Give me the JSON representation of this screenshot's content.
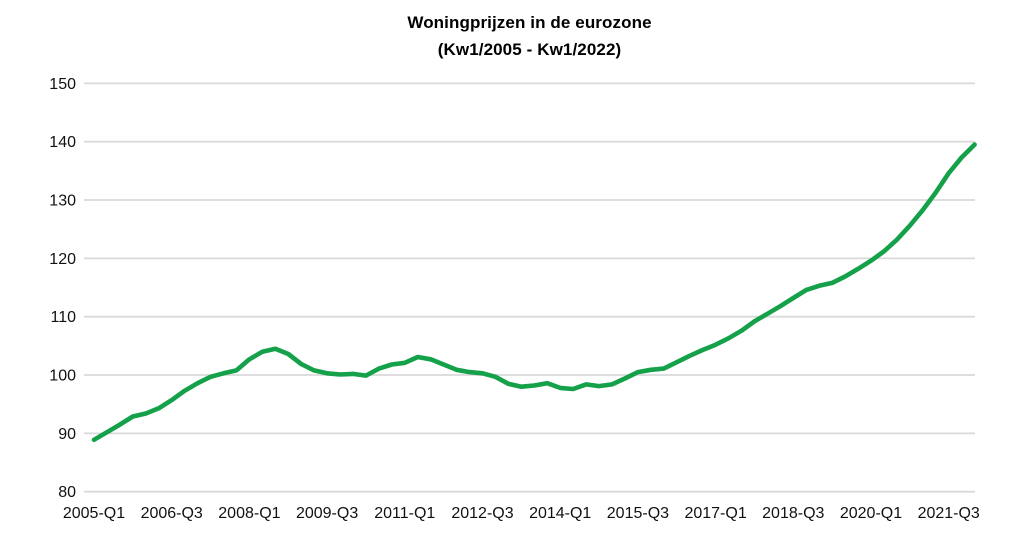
{
  "title": "Woningprijzen in de eurozone",
  "subtitle": "(Kw1/2005 - Kw1/2022)",
  "colors": {
    "line": "#14a14a",
    "gridline": "#d9d9d9",
    "text": "#111111",
    "background": "#ffffff"
  },
  "chart_data": {
    "type": "line",
    "title": "Woningprijzen in de eurozone",
    "subtitle": "(Kw1/2005 - Kw1/2022)",
    "x_start": "2005-Q1",
    "x_end": "2022-Q1",
    "x_frequency": "quarterly",
    "x_tick_labels": [
      "2005-Q1",
      "2006-Q3",
      "2008-Q1",
      "2009-Q3",
      "2011-Q1",
      "2012-Q3",
      "2014-Q1",
      "2015-Q3",
      "2017-Q1",
      "2018-Q3",
      "2020-Q1",
      "2021-Q3"
    ],
    "x_tick_indices": [
      0,
      6,
      12,
      18,
      24,
      30,
      36,
      42,
      48,
      54,
      60,
      66
    ],
    "y_ticks": [
      80,
      90,
      100,
      110,
      120,
      130,
      140,
      150
    ],
    "ylim": [
      80,
      150
    ],
    "grid": "horizontal",
    "legend": "none",
    "values": [
      88.9,
      90.2,
      91.5,
      92.9,
      93.4,
      94.3,
      95.7,
      97.3,
      98.6,
      99.7,
      100.3,
      100.8,
      102.7,
      104.0,
      104.5,
      103.6,
      101.9,
      100.8,
      100.3,
      100.1,
      100.2,
      99.9,
      101.1,
      101.8,
      102.1,
      103.1,
      102.7,
      101.8,
      100.9,
      100.5,
      100.3,
      99.7,
      98.5,
      98.0,
      98.2,
      98.6,
      97.8,
      97.6,
      98.4,
      98.1,
      98.4,
      99.4,
      100.5,
      100.9,
      101.1,
      102.2,
      103.3,
      104.3,
      105.2,
      106.3,
      107.6,
      109.2,
      110.5,
      111.8,
      113.2,
      114.6,
      115.3,
      115.8,
      116.9,
      118.2,
      119.6,
      121.2,
      123.2,
      125.6,
      128.3,
      131.3,
      134.6,
      137.3,
      139.5
    ]
  }
}
